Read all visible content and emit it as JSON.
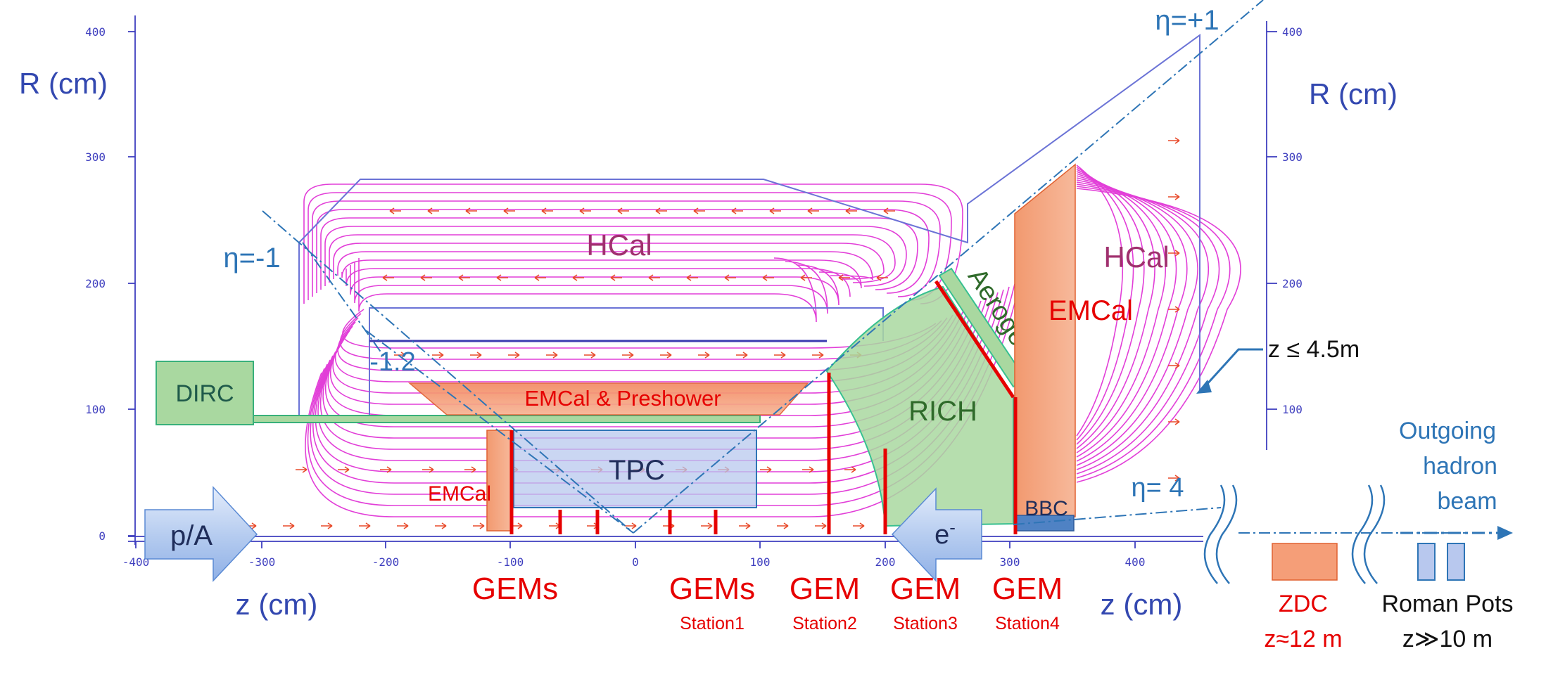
{
  "colors": {
    "axis": "#3f3fbf",
    "axis_label": "#3348b0",
    "eta": "#2e75b6",
    "field": "#e23fd8",
    "arrow": "#e84a2a",
    "detector_red": "#e60000",
    "detector_green": "#3a7d2a",
    "hcal_text": "#a0306e",
    "emcal_fill": "#f5a078",
    "green_fill": "#a9d8a0",
    "tpc_fill": "#b8c8ee",
    "navy_text": "#1f2d5a",
    "beam_blue": "#2e75b6"
  },
  "axes": {
    "left_r_label": "R (cm)",
    "right_r_label": "R (cm)",
    "z_label_left": "z (cm)",
    "z_label_right": "z (cm)",
    "r_ticks": [
      "400",
      "300",
      "200",
      "100",
      "0"
    ],
    "right_r_ticks": [
      "400",
      "300",
      "200",
      "100"
    ],
    "z_ticks": [
      "-400",
      "-300",
      "-200",
      "-100",
      "0",
      "100",
      "200",
      "300",
      "400"
    ]
  },
  "eta": {
    "minus1": "η=-1",
    "plus1": "η=+1",
    "minus1_2": "-1.2",
    "eta4": "η= 4"
  },
  "detectors": {
    "hcal_barrel": "HCal",
    "hcal_forward": "HCal",
    "emcal_preshower": "EMCal & Preshower",
    "emcal_forward": "EMCal",
    "emcal_backward": "EMCal",
    "dirc": "DIRC",
    "tpc": "TPC",
    "rich": "RICH",
    "aerogel": "Aerogel",
    "bbc": "BBC",
    "zdc": "ZDC",
    "zdc_pos": "z≈12 m",
    "roman_pots": "Roman Pots",
    "roman_pots_pos": "z≫10 m"
  },
  "gem_labels": [
    {
      "main": "GEMs",
      "sub": ""
    },
    {
      "main": "GEMs",
      "sub": "Station1"
    },
    {
      "main": "GEM",
      "sub": "Station2"
    },
    {
      "main": "GEM",
      "sub": "Station3"
    },
    {
      "main": "GEM",
      "sub": "Station4"
    }
  ],
  "beams": {
    "proton": "p/A",
    "electron": "e",
    "electron_sup": "-",
    "outgoing_line1": "Outgoing",
    "outgoing_line2": "hadron",
    "outgoing_line3": "beam"
  },
  "callout": {
    "z_limit": "z ≤ 4.5m"
  }
}
